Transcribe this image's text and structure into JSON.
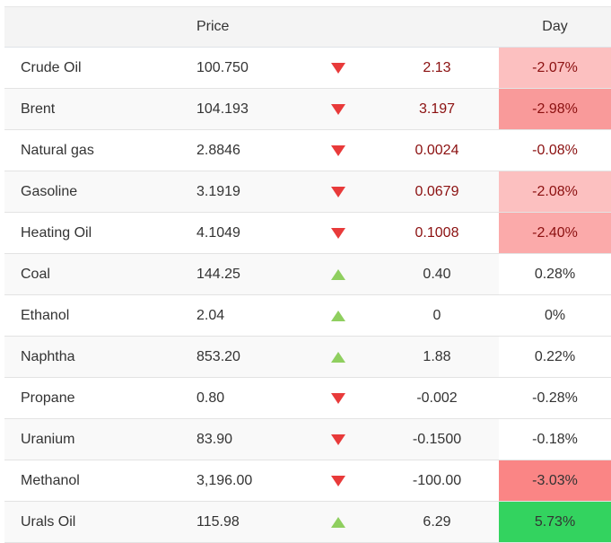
{
  "header": {
    "name": "",
    "price": "Price",
    "change": "",
    "day": "Day"
  },
  "colors": {
    "down_arrow": "#e83a3a",
    "up_arrow": "#8fcf5f",
    "strong_negative_text": "#8b1010"
  },
  "rows": [
    {
      "name": "Crude Oil",
      "price": "100.750",
      "direction": "down",
      "change": "2.13",
      "day": "-2.07%",
      "day_bg": "#fcc0c0",
      "emphasis": true
    },
    {
      "name": "Brent",
      "price": "104.193",
      "direction": "down",
      "change": "3.197",
      "day": "-2.98%",
      "day_bg": "#f99a9a",
      "emphasis": true
    },
    {
      "name": "Natural gas",
      "price": "2.8846",
      "direction": "down",
      "change": "0.0024",
      "day": "-0.08%",
      "day_bg": "#ffffff",
      "emphasis": true
    },
    {
      "name": "Gasoline",
      "price": "3.1919",
      "direction": "down",
      "change": "0.0679",
      "day": "-2.08%",
      "day_bg": "#fcc0c0",
      "emphasis": true
    },
    {
      "name": "Heating Oil",
      "price": "4.1049",
      "direction": "down",
      "change": "0.1008",
      "day": "-2.40%",
      "day_bg": "#fbaaaa",
      "emphasis": true
    },
    {
      "name": "Coal",
      "price": "144.25",
      "direction": "up",
      "change": "0.40",
      "day": "0.28%",
      "day_bg": "#ffffff",
      "emphasis": false
    },
    {
      "name": "Ethanol",
      "price": "2.04",
      "direction": "up",
      "change": "0",
      "day": "0%",
      "day_bg": "#ffffff",
      "emphasis": false
    },
    {
      "name": "Naphtha",
      "price": "853.20",
      "direction": "up",
      "change": "1.88",
      "day": "0.22%",
      "day_bg": "#ffffff",
      "emphasis": false
    },
    {
      "name": "Propane",
      "price": "0.80",
      "direction": "down",
      "change": "-0.002",
      "day": "-0.28%",
      "day_bg": "#ffffff",
      "emphasis": false
    },
    {
      "name": "Uranium",
      "price": "83.90",
      "direction": "down",
      "change": "-0.1500",
      "day": "-0.18%",
      "day_bg": "#ffffff",
      "emphasis": false
    },
    {
      "name": "Methanol",
      "price": "3,196.00",
      "direction": "down",
      "change": "-100.00",
      "day": "-3.03%",
      "day_bg": "#fa8585",
      "emphasis": false
    },
    {
      "name": "Urals Oil",
      "price": "115.98",
      "direction": "up",
      "change": "6.29",
      "day": "5.73%",
      "day_bg": "#33d35f",
      "emphasis": false
    }
  ]
}
